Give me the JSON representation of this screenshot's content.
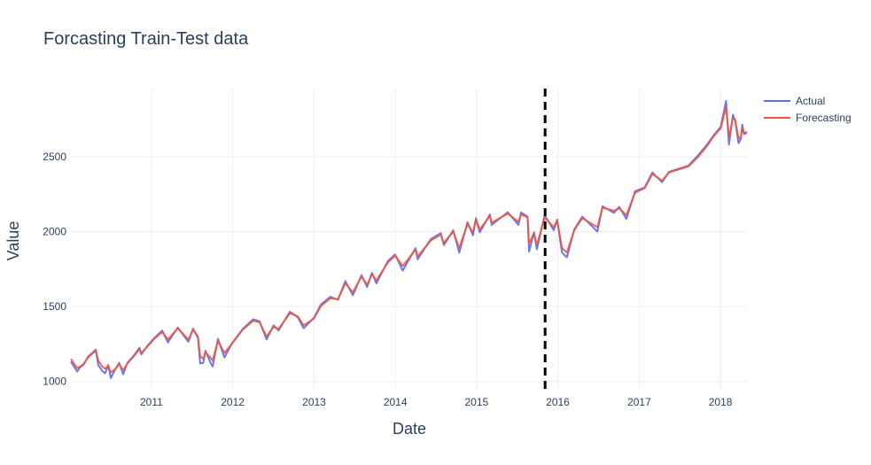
{
  "chart_data": {
    "type": "line",
    "title": "Forcasting Train-Test data",
    "xlabel": "Date",
    "ylabel": "Value",
    "x_tick_labels": [
      "2011",
      "2012",
      "2013",
      "2014",
      "2015",
      "2016",
      "2017",
      "2018"
    ],
    "y_tick_labels": [
      "1000",
      "1500",
      "2000",
      "2500"
    ],
    "xlim": [
      "2010-01-04",
      "2018-04-30"
    ],
    "ylim": [
      945,
      2955
    ],
    "grid": true,
    "legend_position": "top-right",
    "split_line": {
      "x": "2015-11-05",
      "style": "dashed",
      "color": "#000000"
    },
    "series": [
      {
        "name": "Actual",
        "color": "#636efa",
        "points": [
          [
            "2010-01-04",
            1133
          ],
          [
            "2010-02-01",
            1066
          ],
          [
            "2010-02-15",
            1095
          ],
          [
            "2010-03-01",
            1110
          ],
          [
            "2010-03-22",
            1165
          ],
          [
            "2010-04-26",
            1212
          ],
          [
            "2010-05-07",
            1110
          ],
          [
            "2010-05-25",
            1070
          ],
          [
            "2010-06-07",
            1055
          ],
          [
            "2010-06-21",
            1110
          ],
          [
            "2010-07-02",
            1022
          ],
          [
            "2010-07-20",
            1075
          ],
          [
            "2010-08-09",
            1125
          ],
          [
            "2010-08-27",
            1048
          ],
          [
            "2010-09-15",
            1125
          ],
          [
            "2010-10-15",
            1175
          ],
          [
            "2010-11-08",
            1225
          ],
          [
            "2010-11-16",
            1180
          ],
          [
            "2010-12-15",
            1240
          ],
          [
            "2011-01-14",
            1290
          ],
          [
            "2011-02-18",
            1340
          ],
          [
            "2011-03-16",
            1260
          ],
          [
            "2011-04-29",
            1360
          ],
          [
            "2011-06-16",
            1265
          ],
          [
            "2011-07-07",
            1353
          ],
          [
            "2011-07-29",
            1290
          ],
          [
            "2011-08-08",
            1120
          ],
          [
            "2011-08-22",
            1125
          ],
          [
            "2011-09-01",
            1205
          ],
          [
            "2011-09-22",
            1130
          ],
          [
            "2011-10-03",
            1100
          ],
          [
            "2011-10-27",
            1285
          ],
          [
            "2011-11-25",
            1160
          ],
          [
            "2011-12-30",
            1257
          ],
          [
            "2012-02-15",
            1350
          ],
          [
            "2012-04-02",
            1415
          ],
          [
            "2012-05-01",
            1400
          ],
          [
            "2012-06-01",
            1280
          ],
          [
            "2012-07-03",
            1375
          ],
          [
            "2012-07-25",
            1340
          ],
          [
            "2012-09-14",
            1465
          ],
          [
            "2012-10-19",
            1430
          ],
          [
            "2012-11-15",
            1355
          ],
          [
            "2012-12-31",
            1425
          ],
          [
            "2013-02-01",
            1515
          ],
          [
            "2013-03-15",
            1565
          ],
          [
            "2013-04-18",
            1545
          ],
          [
            "2013-05-21",
            1670
          ],
          [
            "2013-06-24",
            1575
          ],
          [
            "2013-08-02",
            1710
          ],
          [
            "2013-08-27",
            1630
          ],
          [
            "2013-09-18",
            1725
          ],
          [
            "2013-10-08",
            1655
          ],
          [
            "2013-11-29",
            1805
          ],
          [
            "2013-12-31",
            1848
          ],
          [
            "2014-02-03",
            1740
          ],
          [
            "2014-04-02",
            1890
          ],
          [
            "2014-04-11",
            1815
          ],
          [
            "2014-06-09",
            1950
          ],
          [
            "2014-07-24",
            1990
          ],
          [
            "2014-08-07",
            1910
          ],
          [
            "2014-09-18",
            2010
          ],
          [
            "2014-10-15",
            1860
          ],
          [
            "2014-11-21",
            2063
          ],
          [
            "2014-12-16",
            1975
          ],
          [
            "2014-12-29",
            2090
          ],
          [
            "2015-01-15",
            1995
          ],
          [
            "2015-03-02",
            2115
          ],
          [
            "2015-03-10",
            2045
          ],
          [
            "2015-05-21",
            2130
          ],
          [
            "2015-07-08",
            2045
          ],
          [
            "2015-07-20",
            2128
          ],
          [
            "2015-08-18",
            2100
          ],
          [
            "2015-08-25",
            1867
          ],
          [
            "2015-09-16",
            1995
          ],
          [
            "2015-09-29",
            1882
          ],
          [
            "2015-11-03",
            2110
          ],
          [
            "2015-12-14",
            2010
          ],
          [
            "2015-12-29",
            2080
          ],
          [
            "2016-01-20",
            1860
          ],
          [
            "2016-02-11",
            1829
          ],
          [
            "2016-03-15",
            2015
          ],
          [
            "2016-04-20",
            2100
          ],
          [
            "2016-06-27",
            2000
          ],
          [
            "2016-07-20",
            2170
          ],
          [
            "2016-09-09",
            2125
          ],
          [
            "2016-10-03",
            2165
          ],
          [
            "2016-11-04",
            2085
          ],
          [
            "2016-12-13",
            2270
          ],
          [
            "2017-01-25",
            2295
          ],
          [
            "2017-03-01",
            2395
          ],
          [
            "2017-04-13",
            2330
          ],
          [
            "2017-05-15",
            2400
          ],
          [
            "2017-08-10",
            2440
          ],
          [
            "2017-09-20",
            2505
          ],
          [
            "2017-11-01",
            2580
          ],
          [
            "2017-12-01",
            2642
          ],
          [
            "2018-01-02",
            2700
          ],
          [
            "2018-01-26",
            2872
          ],
          [
            "2018-02-08",
            2581
          ],
          [
            "2018-02-26",
            2780
          ],
          [
            "2018-03-08",
            2740
          ],
          [
            "2018-03-23",
            2590
          ],
          [
            "2018-04-03",
            2620
          ],
          [
            "2018-04-09",
            2715
          ],
          [
            "2018-04-17",
            2650
          ],
          [
            "2018-04-30",
            2660
          ]
        ]
      },
      {
        "name": "Forecasting",
        "color": "#ef553b",
        "points": [
          [
            "2010-01-04",
            1150
          ],
          [
            "2010-02-01",
            1090
          ],
          [
            "2010-02-15",
            1100
          ],
          [
            "2010-03-01",
            1115
          ],
          [
            "2010-03-22",
            1160
          ],
          [
            "2010-04-26",
            1205
          ],
          [
            "2010-05-07",
            1140
          ],
          [
            "2010-05-25",
            1100
          ],
          [
            "2010-06-07",
            1085
          ],
          [
            "2010-06-21",
            1105
          ],
          [
            "2010-07-02",
            1060
          ],
          [
            "2010-07-20",
            1080
          ],
          [
            "2010-08-09",
            1115
          ],
          [
            "2010-08-27",
            1075
          ],
          [
            "2010-09-15",
            1120
          ],
          [
            "2010-10-15",
            1170
          ],
          [
            "2010-11-08",
            1215
          ],
          [
            "2010-11-16",
            1190
          ],
          [
            "2010-12-15",
            1235
          ],
          [
            "2011-01-14",
            1285
          ],
          [
            "2011-02-18",
            1330
          ],
          [
            "2011-03-16",
            1280
          ],
          [
            "2011-04-29",
            1355
          ],
          [
            "2011-06-16",
            1280
          ],
          [
            "2011-07-07",
            1345
          ],
          [
            "2011-07-29",
            1300
          ],
          [
            "2011-08-08",
            1170
          ],
          [
            "2011-08-22",
            1150
          ],
          [
            "2011-09-01",
            1195
          ],
          [
            "2011-09-22",
            1160
          ],
          [
            "2011-10-03",
            1140
          ],
          [
            "2011-10-27",
            1270
          ],
          [
            "2011-11-25",
            1190
          ],
          [
            "2011-12-30",
            1255
          ],
          [
            "2012-02-15",
            1345
          ],
          [
            "2012-04-02",
            1405
          ],
          [
            "2012-05-01",
            1395
          ],
          [
            "2012-06-01",
            1300
          ],
          [
            "2012-07-03",
            1365
          ],
          [
            "2012-07-25",
            1350
          ],
          [
            "2012-09-14",
            1455
          ],
          [
            "2012-10-19",
            1435
          ],
          [
            "2012-11-15",
            1375
          ],
          [
            "2012-12-31",
            1420
          ],
          [
            "2013-02-01",
            1505
          ],
          [
            "2013-03-15",
            1555
          ],
          [
            "2013-04-18",
            1550
          ],
          [
            "2013-05-21",
            1655
          ],
          [
            "2013-06-24",
            1595
          ],
          [
            "2013-08-02",
            1700
          ],
          [
            "2013-08-27",
            1645
          ],
          [
            "2013-09-18",
            1715
          ],
          [
            "2013-10-08",
            1675
          ],
          [
            "2013-11-29",
            1795
          ],
          [
            "2013-12-31",
            1840
          ],
          [
            "2014-02-03",
            1770
          ],
          [
            "2014-04-02",
            1880
          ],
          [
            "2014-04-11",
            1835
          ],
          [
            "2014-06-09",
            1940
          ],
          [
            "2014-07-24",
            1980
          ],
          [
            "2014-08-07",
            1925
          ],
          [
            "2014-09-18",
            2000
          ],
          [
            "2014-10-15",
            1890
          ],
          [
            "2014-11-21",
            2050
          ],
          [
            "2014-12-16",
            1995
          ],
          [
            "2014-12-29",
            2080
          ],
          [
            "2015-01-15",
            2015
          ],
          [
            "2015-03-02",
            2105
          ],
          [
            "2015-03-10",
            2060
          ],
          [
            "2015-05-21",
            2120
          ],
          [
            "2015-07-08",
            2065
          ],
          [
            "2015-07-20",
            2115
          ],
          [
            "2015-08-18",
            2095
          ],
          [
            "2015-08-25",
            1920
          ],
          [
            "2015-09-16",
            1990
          ],
          [
            "2015-09-29",
            1910
          ],
          [
            "2015-11-03",
            2095
          ],
          [
            "2015-12-14",
            2030
          ],
          [
            "2015-12-29",
            2075
          ],
          [
            "2016-01-20",
            1890
          ],
          [
            "2016-02-11",
            1860
          ],
          [
            "2016-03-15",
            2010
          ],
          [
            "2016-04-20",
            2090
          ],
          [
            "2016-06-27",
            2030
          ],
          [
            "2016-07-20",
            2160
          ],
          [
            "2016-09-09",
            2140
          ],
          [
            "2016-10-03",
            2155
          ],
          [
            "2016-11-04",
            2110
          ],
          [
            "2016-12-13",
            2260
          ],
          [
            "2017-01-25",
            2290
          ],
          [
            "2017-03-01",
            2385
          ],
          [
            "2017-04-13",
            2340
          ],
          [
            "2017-05-15",
            2395
          ],
          [
            "2017-08-10",
            2435
          ],
          [
            "2017-09-20",
            2495
          ],
          [
            "2017-11-01",
            2570
          ],
          [
            "2017-12-01",
            2635
          ],
          [
            "2018-01-02",
            2690
          ],
          [
            "2018-01-26",
            2830
          ],
          [
            "2018-02-08",
            2630
          ],
          [
            "2018-02-26",
            2760
          ],
          [
            "2018-03-08",
            2745
          ],
          [
            "2018-03-23",
            2620
          ],
          [
            "2018-04-03",
            2635
          ],
          [
            "2018-04-09",
            2690
          ],
          [
            "2018-04-17",
            2660
          ],
          [
            "2018-04-30",
            2665
          ]
        ]
      }
    ]
  }
}
